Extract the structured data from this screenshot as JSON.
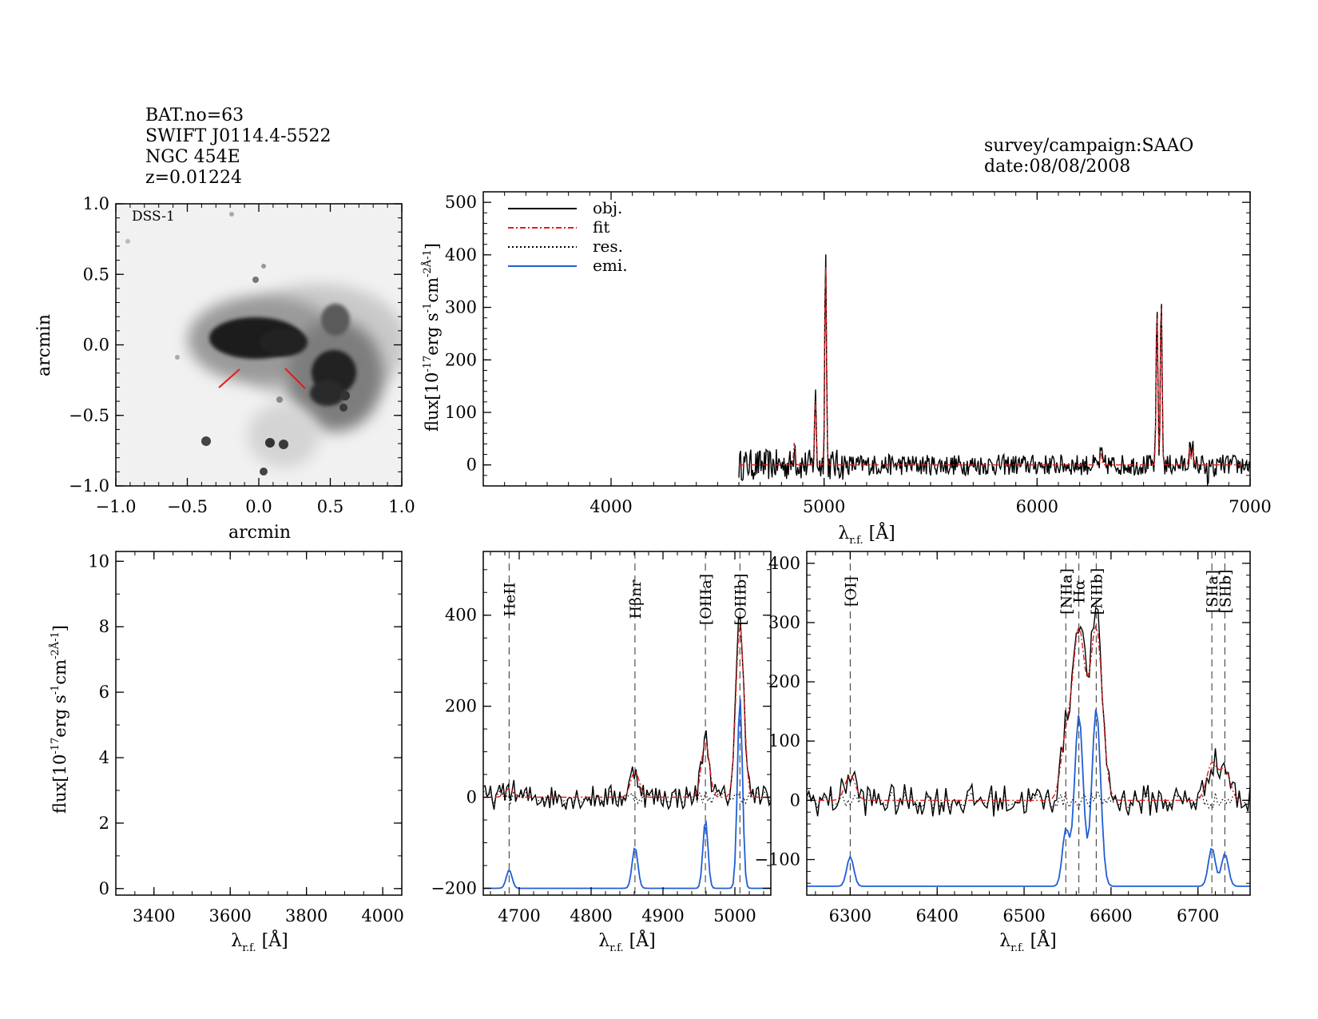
{
  "header": {
    "bat_no": "BAT.no=63",
    "swift_id": "SWIFT J0114.4-5522",
    "galaxy": "NGC 454E",
    "redshift": "z=0.01224",
    "survey": "survey/campaign:SAAO",
    "date": "date:08/08/2008"
  },
  "colors": {
    "obj": "#000000",
    "fit": "#e41a1c",
    "res": "#000000",
    "emi": "#1f5fd6",
    "marker": "#e41a1c"
  },
  "chart_data": [
    {
      "id": "image",
      "type": "image",
      "label": "DSS-1",
      "xlabel": "arcmin",
      "ylabel": "arcmin",
      "xlim": [
        -1.0,
        1.0
      ],
      "ylim": [
        -1.0,
        1.0
      ],
      "xticks": [
        "-1.0",
        "-0.5",
        "0.0",
        "0.5",
        "1.0"
      ],
      "yticks": [
        "1.0",
        "0.5",
        "0.0",
        "-0.5",
        "-1.0"
      ]
    },
    {
      "id": "full",
      "type": "line",
      "ylabel": "flux[10⁻¹⁷erg s⁻¹cm⁻²Å⁻¹]",
      "xlabel": "λr.f. [Å]",
      "xlim": [
        3400,
        7000
      ],
      "ylim": [
        -40,
        520
      ],
      "xticks": [
        "4000",
        "5000",
        "6000",
        "7000"
      ],
      "yticks": [
        "0",
        "100",
        "200",
        "300",
        "400",
        "500"
      ],
      "legend": [
        {
          "label": "obj.",
          "style": "solid",
          "color": "#000000"
        },
        {
          "label": "fit",
          "style": "dashdot",
          "color": "#e41a1c"
        },
        {
          "label": "res.",
          "style": "dotted",
          "color": "#000000"
        },
        {
          "label": "emi.",
          "style": "solid",
          "color": "#1f5fd6"
        }
      ],
      "obs_range": [
        4600,
        7000
      ],
      "peaks": [
        [
          4861,
          45
        ],
        [
          4959,
          130
        ],
        [
          5007,
          405
        ],
        [
          6300,
          25
        ],
        [
          6563,
          300
        ],
        [
          6583,
          320
        ],
        [
          6716,
          35
        ],
        [
          6731,
          30
        ]
      ]
    },
    {
      "id": "empty",
      "type": "line",
      "ylabel": "flux[10⁻¹⁷erg s⁻¹cm⁻²Å⁻¹]",
      "xlabel": "λr.f. [Å]",
      "xlim": [
        3300,
        4050
      ],
      "ylim": [
        -0.2,
        10.3
      ],
      "xticks": [
        "3400",
        "3600",
        "3800",
        "4000"
      ],
      "yticks": [
        "0",
        "2",
        "4",
        "6",
        "8",
        "10"
      ]
    },
    {
      "id": "hbeta",
      "type": "line",
      "xlabel": "λr.f. [Å]",
      "xlim": [
        4650,
        5050
      ],
      "ylim": [
        -215,
        540
      ],
      "xticks": [
        "4700",
        "4800",
        "4900",
        "5000"
      ],
      "yticks": [
        "-200",
        "0",
        "200",
        "400"
      ],
      "emi_base": -200,
      "lines": [
        {
          "name": "HeII",
          "wave": 4686,
          "peak": 20,
          "emi": 40,
          "sigma": 4,
          "color": "#e41a1c"
        },
        {
          "name": "Hβnr",
          "wave": 4861,
          "peak": 60,
          "emi": 90,
          "sigma": 4,
          "color": "#000000"
        },
        {
          "name": "[OIIIa]",
          "wave": 4959,
          "peak": 130,
          "emi": 150,
          "sigma": 3.5,
          "color": "#000000"
        },
        {
          "name": "[OIIIb]",
          "wave": 5007,
          "peak": 400,
          "emi": 420,
          "sigma": 3.5,
          "color": "#000000"
        }
      ]
    },
    {
      "id": "halpha",
      "type": "line",
      "xlabel": "λr.f. [Å]",
      "xlim": [
        6250,
        6760
      ],
      "ylim": [
        -160,
        420
      ],
      "xticks": [
        "6300",
        "6400",
        "6500",
        "6600",
        "6700"
      ],
      "yticks": [
        "-100",
        "0",
        "100",
        "200",
        "300",
        "400"
      ],
      "emi_base": -145,
      "lines": [
        {
          "name": "[OI]",
          "wave": 6300,
          "peak": 45,
          "emi": 50,
          "sigma": 4,
          "color": "#000000"
        },
        {
          "name": "[NIIa]",
          "wave": 6548,
          "peak": 100,
          "emi": 95,
          "sigma": 4,
          "color": "#000000"
        },
        {
          "name": "Hα",
          "wave": 6563,
          "peak": 300,
          "emi": 290,
          "sigma": 5,
          "color": "#000000"
        },
        {
          "name": "[NIIb]",
          "wave": 6583,
          "peak": 305,
          "emi": 300,
          "sigma": 5,
          "color": "#000000"
        },
        {
          "name": "[SIIa]",
          "wave": 6716,
          "peak": 65,
          "emi": 65,
          "sigma": 4,
          "color": "#000000"
        },
        {
          "name": "[SIIb]",
          "wave": 6731,
          "peak": 55,
          "emi": 55,
          "sigma": 4,
          "color": "#000000"
        }
      ]
    }
  ]
}
